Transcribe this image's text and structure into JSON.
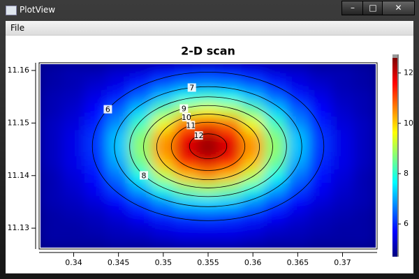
{
  "window": {
    "title": "PlotView"
  },
  "menu": [
    "File"
  ],
  "chart_data": {
    "type": "heatmap",
    "title": "2-D scan",
    "x": [
      0.3375,
      0.34,
      0.3425,
      0.345,
      0.3475,
      0.35,
      0.3525,
      0.355,
      0.3575,
      0.36,
      0.3625,
      0.365,
      0.3675,
      0.37,
      0.3725
    ],
    "y": [
      11.1275,
      11.13,
      11.1325,
      11.135,
      11.1375,
      11.14,
      11.1425,
      11.145,
      11.1475,
      11.15,
      11.1525,
      11.155,
      11.1575,
      11.16
    ],
    "z": [
      [
        5.0,
        5.0,
        5.0,
        5.1,
        5.1,
        5.2,
        5.3,
        5.3,
        5.3,
        5.2,
        5.1,
        5.1,
        5.0,
        5.0,
        5.0
      ],
      [
        5.0,
        5.0,
        5.1,
        5.2,
        5.3,
        5.5,
        5.6,
        5.6,
        5.6,
        5.5,
        5.3,
        5.2,
        5.1,
        5.0,
        5.0
      ],
      [
        5.0,
        5.1,
        5.2,
        5.4,
        5.7,
        6.0,
        6.2,
        6.3,
        6.2,
        6.0,
        5.7,
        5.4,
        5.2,
        5.1,
        5.0
      ],
      [
        5.1,
        5.2,
        5.4,
        5.7,
        6.2,
        6.8,
        7.3,
        7.4,
        7.3,
        6.8,
        6.2,
        5.7,
        5.4,
        5.2,
        5.1
      ],
      [
        5.1,
        5.3,
        5.6,
        6.2,
        7.0,
        7.9,
        8.6,
        8.9,
        8.6,
        7.9,
        7.0,
        6.2,
        5.6,
        5.3,
        5.1
      ],
      [
        5.1,
        5.4,
        5.8,
        6.6,
        7.8,
        9.1,
        10.1,
        10.5,
        10.1,
        9.1,
        7.8,
        6.6,
        5.8,
        5.4,
        5.1
      ],
      [
        5.2,
        5.5,
        6.0,
        7.0,
        8.5,
        10.1,
        11.3,
        11.8,
        11.3,
        10.1,
        8.5,
        7.0,
        6.0,
        5.5,
        5.2
      ],
      [
        5.2,
        5.5,
        6.1,
        7.2,
        8.8,
        10.5,
        11.9,
        12.5,
        11.9,
        10.5,
        8.8,
        7.2,
        6.1,
        5.5,
        5.2
      ],
      [
        5.2,
        5.5,
        6.1,
        7.2,
        8.7,
        10.3,
        11.7,
        12.2,
        11.7,
        10.3,
        8.7,
        7.2,
        6.1,
        5.5,
        5.2
      ],
      [
        5.2,
        5.4,
        5.9,
        6.8,
        8.1,
        9.5,
        10.7,
        11.1,
        10.7,
        9.5,
        8.1,
        6.8,
        5.9,
        5.4,
        5.2
      ],
      [
        5.1,
        5.3,
        5.7,
        6.4,
        7.3,
        8.4,
        9.2,
        9.5,
        9.2,
        8.4,
        7.3,
        6.4,
        5.7,
        5.3,
        5.1
      ],
      [
        5.1,
        5.2,
        5.5,
        5.9,
        6.5,
        7.2,
        7.8,
        8.0,
        7.8,
        7.2,
        6.5,
        5.9,
        5.5,
        5.2,
        5.1
      ],
      [
        5.0,
        5.1,
        5.3,
        5.5,
        5.9,
        6.3,
        6.6,
        6.7,
        6.6,
        6.3,
        5.9,
        5.5,
        5.3,
        5.1,
        5.0
      ],
      [
        5.0,
        5.1,
        5.1,
        5.3,
        5.4,
        5.6,
        5.8,
        5.9,
        5.8,
        5.6,
        5.4,
        5.3,
        5.1,
        5.1,
        5.0
      ]
    ],
    "xlim": [
      0.3363,
      0.3737
    ],
    "ylim": [
      11.1263,
      11.1612
    ],
    "xticks": [
      0.34,
      0.345,
      0.35,
      0.355,
      0.36,
      0.365,
      0.37
    ],
    "yticks": [
      11.13,
      11.14,
      11.15,
      11.16
    ],
    "zlim": [
      4.7,
      12.6
    ],
    "zticks": [
      6,
      8,
      10,
      12
    ],
    "colormap": [
      "#00007f",
      "#0000ff",
      "#007fff",
      "#00ffff",
      "#7fff7f",
      "#ffff00",
      "#ff7f00",
      "#ff0000",
      "#7f0000"
    ],
    "contour_levels": [
      6,
      7,
      8,
      9,
      10,
      11,
      12
    ],
    "contour_color": "#000000"
  }
}
